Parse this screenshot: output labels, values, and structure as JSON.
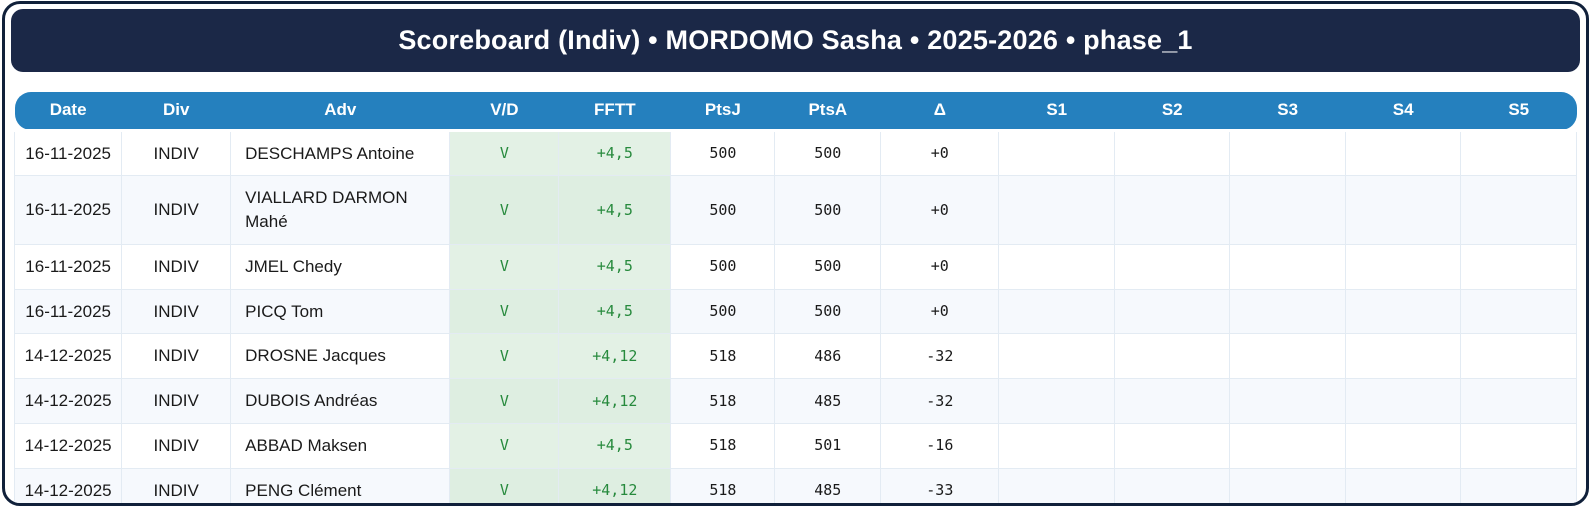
{
  "header": {
    "title": "Scoreboard (Indiv) • MORDOMO Sasha • 2025-2026 • phase_1"
  },
  "table": {
    "columns": [
      "Date",
      "Div",
      "Adv",
      "V/D",
      "FFTT",
      "PtsJ",
      "PtsA",
      "Δ",
      "S1",
      "S2",
      "S3",
      "S4",
      "S5"
    ],
    "rows": [
      {
        "date": "16-11-2025",
        "div": "INDIV",
        "adv": "DESCHAMPS Antoine",
        "vd": "V",
        "fftt": "+4,5",
        "ptsj": "500",
        "ptsa": "500",
        "delta": "+0",
        "s1": "",
        "s2": "",
        "s3": "",
        "s4": "",
        "s5": ""
      },
      {
        "date": "16-11-2025",
        "div": "INDIV",
        "adv": "VIALLARD DARMON Mahé",
        "vd": "V",
        "fftt": "+4,5",
        "ptsj": "500",
        "ptsa": "500",
        "delta": "+0",
        "s1": "",
        "s2": "",
        "s3": "",
        "s4": "",
        "s5": ""
      },
      {
        "date": "16-11-2025",
        "div": "INDIV",
        "adv": "JMEL Chedy",
        "vd": "V",
        "fftt": "+4,5",
        "ptsj": "500",
        "ptsa": "500",
        "delta": "+0",
        "s1": "",
        "s2": "",
        "s3": "",
        "s4": "",
        "s5": ""
      },
      {
        "date": "16-11-2025",
        "div": "INDIV",
        "adv": "PICQ Tom",
        "vd": "V",
        "fftt": "+4,5",
        "ptsj": "500",
        "ptsa": "500",
        "delta": "+0",
        "s1": "",
        "s2": "",
        "s3": "",
        "s4": "",
        "s5": ""
      },
      {
        "date": "14-12-2025",
        "div": "INDIV",
        "adv": "DROSNE Jacques",
        "vd": "V",
        "fftt": "+4,12",
        "ptsj": "518",
        "ptsa": "486",
        "delta": "-32",
        "s1": "",
        "s2": "",
        "s3": "",
        "s4": "",
        "s5": ""
      },
      {
        "date": "14-12-2025",
        "div": "INDIV",
        "adv": "DUBOIS Andréas",
        "vd": "V",
        "fftt": "+4,12",
        "ptsj": "518",
        "ptsa": "485",
        "delta": "-32",
        "s1": "",
        "s2": "",
        "s3": "",
        "s4": "",
        "s5": ""
      },
      {
        "date": "14-12-2025",
        "div": "INDIV",
        "adv": "ABBAD Maksen",
        "vd": "V",
        "fftt": "+4,5",
        "ptsj": "518",
        "ptsa": "501",
        "delta": "-16",
        "s1": "",
        "s2": "",
        "s3": "",
        "s4": "",
        "s5": ""
      },
      {
        "date": "14-12-2025",
        "div": "INDIV",
        "adv": "PENG Clément",
        "vd": "V",
        "fftt": "+4,12",
        "ptsj": "518",
        "ptsa": "485",
        "delta": "-33",
        "s1": "",
        "s2": "",
        "s3": "",
        "s4": "",
        "s5": ""
      }
    ]
  },
  "colors": {
    "title_bar_bg": "#1b2847",
    "frame_border": "#10203a",
    "table_header_bg": "#2580be",
    "win_text": "#278a3d",
    "win_cell_bg": "#e3f1e5",
    "row_alt_bg": "#f6f9fd",
    "cell_border": "#e3ebf3"
  }
}
